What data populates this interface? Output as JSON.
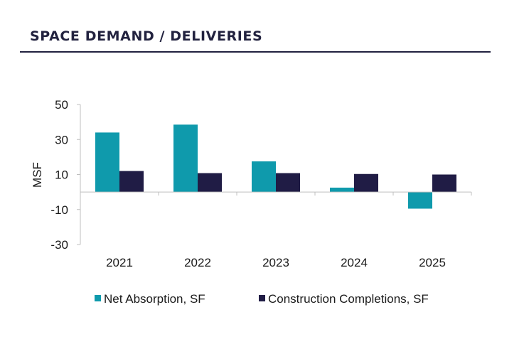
{
  "header": {
    "title": "SPACE DEMAND / DELIVERIES"
  },
  "colors": {
    "net_absorption": "#0f9aac",
    "construction": "#201c45",
    "axis": "#bfbfbf",
    "title": "#22223f"
  },
  "chart_data": {
    "type": "bar",
    "title": "SPACE DEMAND / DELIVERIES",
    "xlabel": "",
    "ylabel": "MSF",
    "ylim": [
      -30,
      50
    ],
    "yticks": [
      50,
      30,
      10,
      -10,
      -30
    ],
    "ytick_labels": [
      "50",
      "30",
      "10",
      "-10",
      "-30"
    ],
    "categories": [
      "2021",
      "2022",
      "2023",
      "2024",
      "2025"
    ],
    "series": [
      {
        "name": "Net Absorption, SF",
        "values": [
          34,
          38.5,
          17.5,
          2.5,
          -9.5
        ]
      },
      {
        "name": "Construction Completions, SF",
        "values": [
          12,
          10.8,
          10.8,
          10.3,
          10
        ]
      }
    ],
    "legend_position": "bottom",
    "grid": false
  }
}
